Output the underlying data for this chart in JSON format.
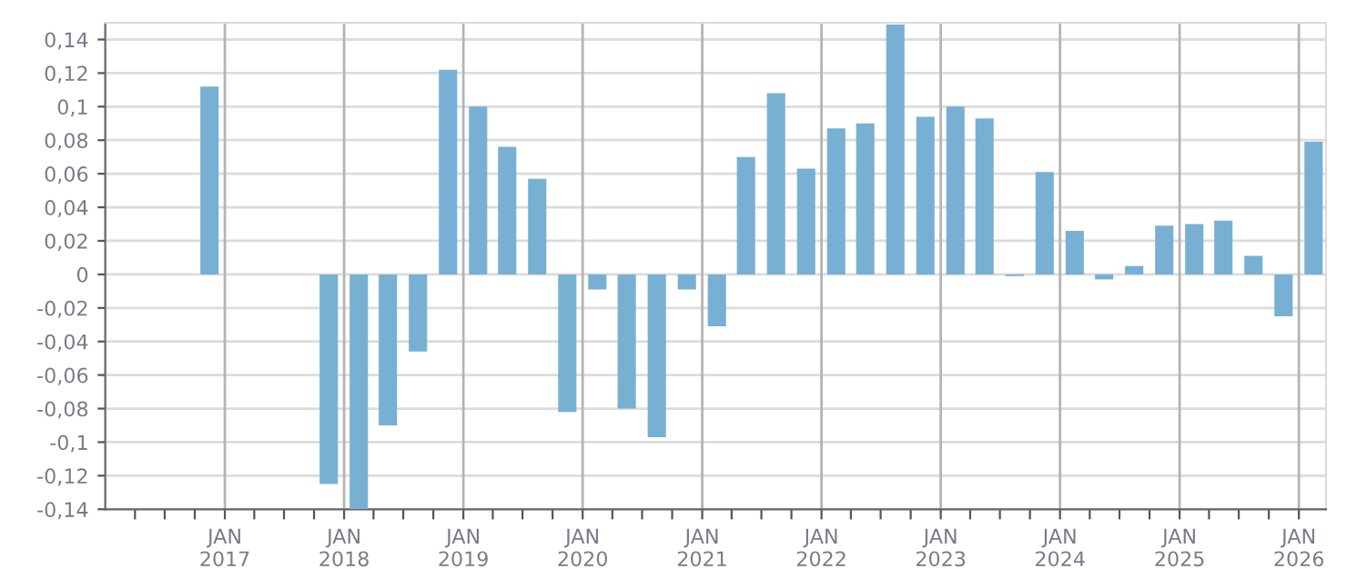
{
  "chart_data": {
    "type": "bar",
    "x": [
      "2016-11-15",
      "2017-02-15",
      "2017-05-15",
      "2017-08-15",
      "2017-11-15",
      "2018-02-15",
      "2018-05-15",
      "2018-08-15",
      "2018-11-15",
      "2019-02-15",
      "2019-05-15",
      "2019-08-15",
      "2019-11-15",
      "2020-02-15",
      "2020-05-15",
      "2020-08-15",
      "2020-11-15",
      "2021-02-15",
      "2021-05-15",
      "2021-08-15",
      "2021-11-15",
      "2022-02-15",
      "2022-05-15",
      "2022-08-15",
      "2022-11-15",
      "2023-02-15",
      "2023-05-15",
      "2023-08-15",
      "2023-11-15",
      "2024-02-15",
      "2024-05-15",
      "2024-08-15",
      "2024-11-15",
      "2025-02-15",
      "2025-05-15",
      "2025-08-15",
      "2025-11-15",
      "2026-02-15"
    ],
    "values": [
      0.112,
      null,
      null,
      null,
      -0.125,
      -0.14,
      -0.09,
      -0.046,
      0.122,
      0.1,
      0.076,
      0.057,
      -0.082,
      -0.009,
      -0.08,
      -0.097,
      -0.009,
      -0.031,
      0.07,
      0.108,
      0.063,
      0.087,
      0.09,
      0.149,
      0.094,
      0.1,
      0.093,
      -0.001,
      0.061,
      0.026,
      -0.003,
      0.005,
      0.029,
      0.03,
      0.032,
      0.011,
      -0.025,
      0.079
    ],
    "color": "#78b0d3",
    "ylim": [
      -0.14,
      0.15
    ],
    "yticks": [
      {
        "value": -0.14,
        "label": "-0,14"
      },
      {
        "value": -0.12,
        "label": "-0,12"
      },
      {
        "value": -0.1,
        "label": "-0,1"
      },
      {
        "value": -0.08,
        "label": "-0,08"
      },
      {
        "value": -0.06,
        "label": "-0,06"
      },
      {
        "value": -0.04,
        "label": "-0,04"
      },
      {
        "value": -0.02,
        "label": "-0,02"
      },
      {
        "value": 0,
        "label": "0"
      },
      {
        "value": 0.02,
        "label": "0,02"
      },
      {
        "value": 0.04,
        "label": "0,04"
      },
      {
        "value": 0.06,
        "label": "0,06"
      },
      {
        "value": 0.08,
        "label": "0,08"
      },
      {
        "value": 0.1,
        "label": "0,1"
      },
      {
        "value": 0.12,
        "label": "0,12"
      },
      {
        "value": 0.14,
        "label": "0,14"
      }
    ],
    "xlim": [
      "2016-01-01",
      "2026-03-25"
    ],
    "xticks": [
      {
        "value": "2016-04-01",
        "label": null
      },
      {
        "value": "2016-07-01",
        "label": null
      },
      {
        "value": "2016-10-01",
        "label": null
      },
      {
        "value": "2017-01-01",
        "label": "JAN\n2017"
      },
      {
        "value": "2017-04-01",
        "label": null
      },
      {
        "value": "2017-07-01",
        "label": null
      },
      {
        "value": "2017-10-01",
        "label": null
      },
      {
        "value": "2018-01-01",
        "label": "JAN\n2018"
      },
      {
        "value": "2018-04-01",
        "label": null
      },
      {
        "value": "2018-07-01",
        "label": null
      },
      {
        "value": "2018-10-01",
        "label": null
      },
      {
        "value": "2019-01-01",
        "label": "JAN\n2019"
      },
      {
        "value": "2019-04-01",
        "label": null
      },
      {
        "value": "2019-07-01",
        "label": null
      },
      {
        "value": "2019-10-01",
        "label": null
      },
      {
        "value": "2020-01-01",
        "label": "JAN\n2020"
      },
      {
        "value": "2020-04-01",
        "label": null
      },
      {
        "value": "2020-07-01",
        "label": null
      },
      {
        "value": "2020-10-01",
        "label": null
      },
      {
        "value": "2021-01-01",
        "label": "JAN\n2021"
      },
      {
        "value": "2021-04-01",
        "label": null
      },
      {
        "value": "2021-07-01",
        "label": null
      },
      {
        "value": "2021-10-01",
        "label": null
      },
      {
        "value": "2022-01-01",
        "label": "JAN\n2022"
      },
      {
        "value": "2022-04-01",
        "label": null
      },
      {
        "value": "2022-07-01",
        "label": null
      },
      {
        "value": "2022-10-01",
        "label": null
      },
      {
        "value": "2023-01-01",
        "label": "JAN\n2023"
      },
      {
        "value": "2023-04-01",
        "label": null
      },
      {
        "value": "2023-07-01",
        "label": null
      },
      {
        "value": "2023-10-01",
        "label": null
      },
      {
        "value": "2024-01-01",
        "label": "JAN\n2024"
      },
      {
        "value": "2024-04-01",
        "label": null
      },
      {
        "value": "2024-07-01",
        "label": null
      },
      {
        "value": "2024-10-01",
        "label": null
      },
      {
        "value": "2025-01-01",
        "label": "JAN\n2025"
      },
      {
        "value": "2025-04-01",
        "label": null
      },
      {
        "value": "2025-07-01",
        "label": null
      },
      {
        "value": "2025-10-01",
        "label": null
      },
      {
        "value": "2026-01-01",
        "label": "JAN\n2026"
      }
    ],
    "grid": true
  }
}
